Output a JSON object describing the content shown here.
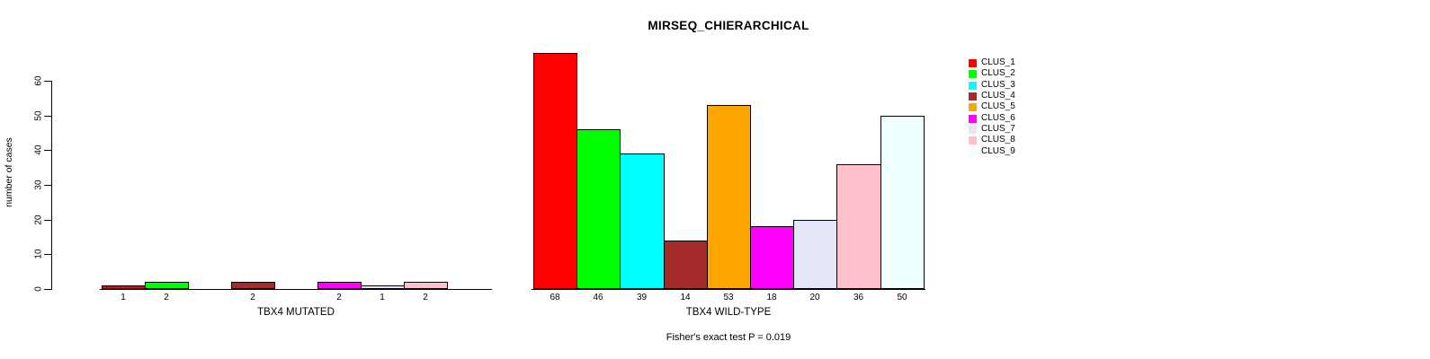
{
  "chart_data": {
    "type": "bar",
    "title": "MIRSEQ_CHIERARCHICAL",
    "ylabel": "number of cases",
    "ylim": [
      0,
      68
    ],
    "yticks": [
      0,
      10,
      20,
      30,
      40,
      50,
      60
    ],
    "grid": false,
    "legend_position": "right",
    "categories": [
      "CLUS_1",
      "CLUS_2",
      "CLUS_3",
      "CLUS_4",
      "CLUS_5",
      "CLUS_6",
      "CLUS_7",
      "CLUS_8",
      "CLUS_9"
    ],
    "colors": [
      "#FF0000",
      "#00FF00",
      "#00FFFF",
      "#A52A2A",
      "#FFA500",
      "#FF00FF",
      "#E6E6FA",
      "#FFC0CB",
      "#F0FFFF"
    ],
    "panels": [
      {
        "name": "mutated",
        "xlabel": "TBX4 MUTATED",
        "values": [
          1,
          2,
          0,
          2,
          0,
          2,
          1,
          2,
          0
        ],
        "bar_labels": [
          "1",
          "2",
          "",
          "2",
          "",
          "2",
          "1",
          "2",
          ""
        ]
      },
      {
        "name": "wild-type",
        "xlabel": "TBX4 WILD-TYPE",
        "values": [
          68,
          46,
          39,
          14,
          53,
          18,
          20,
          36,
          50
        ],
        "bar_labels": [
          "68",
          "46",
          "39",
          "14",
          "53",
          "18",
          "20",
          "36",
          "50"
        ]
      }
    ],
    "annotation": "Fisher's exact test P = 0.019"
  }
}
